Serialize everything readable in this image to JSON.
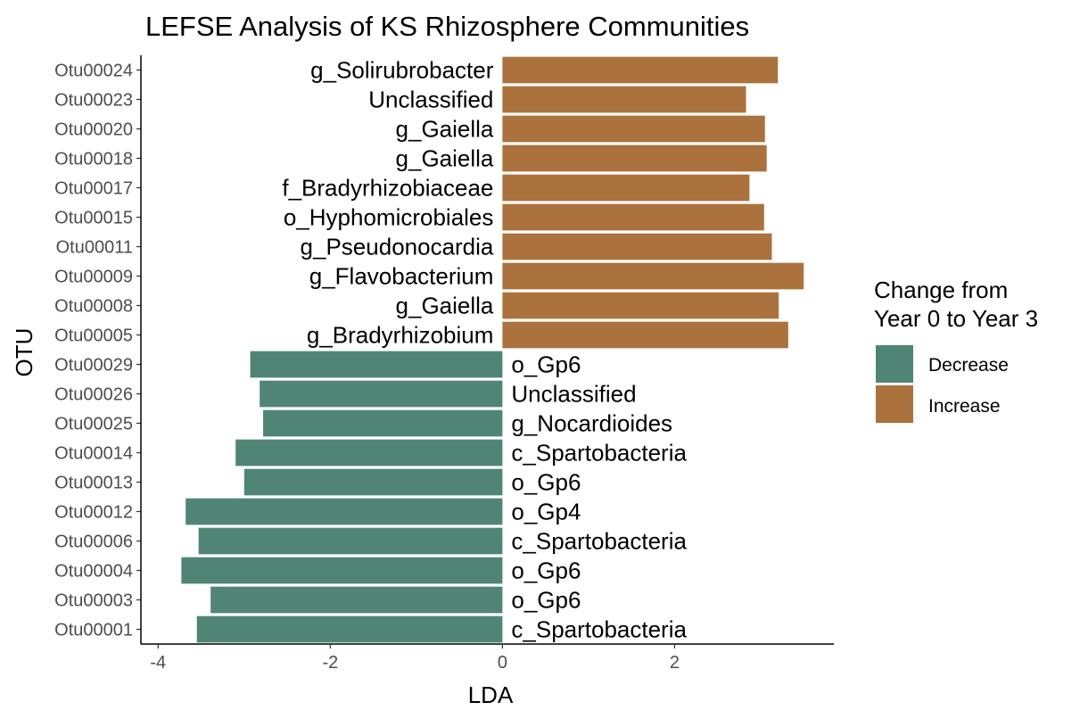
{
  "chart_data": {
    "type": "bar",
    "orientation": "horizontal",
    "title": "LEFSE Analysis of KS Rhizosphere Communities",
    "xlabel": "LDA",
    "ylabel": "OTU",
    "xlim": [
      -4.2,
      3.85
    ],
    "xticks": [
      -4,
      -2,
      0,
      2
    ],
    "xtick_labels": [
      "-4",
      "-2",
      "0",
      "2"
    ],
    "grid": false,
    "legend": {
      "title_lines": [
        "Change from",
        "Year 0 to Year 3"
      ],
      "placement": "right",
      "entries": [
        {
          "label": "Decrease",
          "color": "#508576"
        },
        {
          "label": "Increase",
          "color": "#AC723D"
        }
      ]
    },
    "categories": [
      "Otu00024",
      "Otu00023",
      "Otu00020",
      "Otu00018",
      "Otu00017",
      "Otu00015",
      "Otu00011",
      "Otu00009",
      "Otu00008",
      "Otu00005",
      "Otu00029",
      "Otu00026",
      "Otu00025",
      "Otu00014",
      "Otu00013",
      "Otu00012",
      "Otu00006",
      "Otu00004",
      "Otu00003",
      "Otu00001"
    ],
    "values": [
      3.2,
      2.83,
      3.05,
      3.07,
      2.87,
      3.04,
      3.13,
      3.5,
      3.21,
      3.32,
      -2.93,
      -2.82,
      -2.78,
      -3.1,
      -3.0,
      -3.68,
      -3.53,
      -3.73,
      -3.39,
      -3.55
    ],
    "groups": [
      "Increase",
      "Increase",
      "Increase",
      "Increase",
      "Increase",
      "Increase",
      "Increase",
      "Increase",
      "Increase",
      "Increase",
      "Decrease",
      "Decrease",
      "Decrease",
      "Decrease",
      "Decrease",
      "Decrease",
      "Decrease",
      "Decrease",
      "Decrease",
      "Decrease"
    ],
    "bar_labels": [
      "g_Solirubrobacter",
      "Unclassified",
      "g_Gaiella",
      "g_Gaiella",
      "f_Bradyrhizobiaceae",
      "o_Hyphomicrobiales",
      "g_Pseudonocardia",
      "g_Flavobacterium",
      "g_Gaiella",
      "g_Bradyrhizobium",
      "o_Gp6",
      "Unclassified",
      "g_Nocardioides",
      "c_Spartobacteria",
      "o_Gp6",
      "o_Gp4",
      "c_Spartobacteria",
      "o_Gp6",
      "o_Gp6",
      "c_Spartobacteria"
    ]
  }
}
